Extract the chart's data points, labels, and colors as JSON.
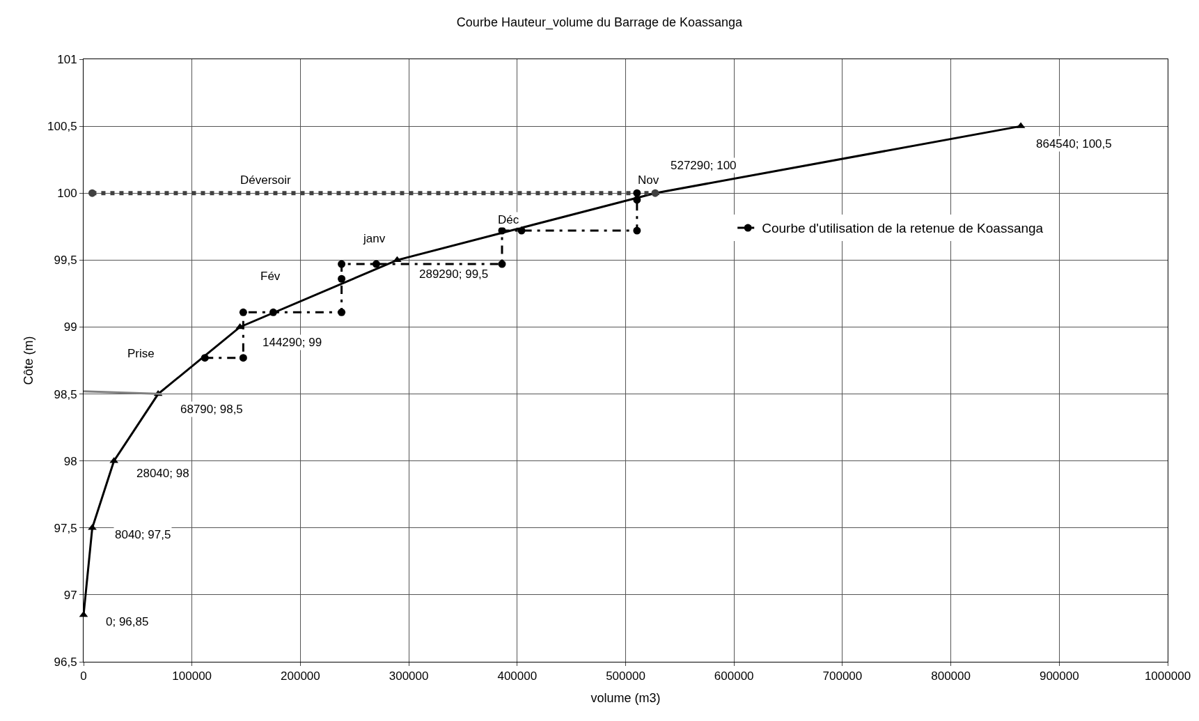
{
  "chart_data": {
    "type": "line",
    "title": "Courbe Hauteur_volume du Barrage de Koassanga",
    "xlabel": "volume (m3)",
    "ylabel": "Côte (m)",
    "xlim": [
      0,
      1000000
    ],
    "xticks": [
      0,
      100000,
      200000,
      300000,
      400000,
      500000,
      600000,
      700000,
      800000,
      900000,
      1000000
    ],
    "ylim": [
      96.5,
      101
    ],
    "yticks": [
      {
        "value": 96.5,
        "label": "96,5"
      },
      97,
      {
        "value": 97.5,
        "label": "97,5"
      },
      98,
      {
        "value": 98.5,
        "label": "98,5"
      },
      99,
      {
        "value": 99.5,
        "label": "99,5"
      },
      100,
      {
        "value": 100.5,
        "label": "100,5"
      },
      101
    ],
    "grid": true,
    "legend": "right",
    "series": [
      {
        "color": "#000000",
        "marker": "triangle",
        "line_style": "solid",
        "x": [
          0,
          8040,
          28040,
          68790,
          144290,
          289290,
          527290,
          864540
        ],
        "values": [
          96.85,
          97.5,
          98,
          98.5,
          99,
          99.5,
          100,
          100.5
        ],
        "value_labels": [
          "0; 96,85",
          "8040; 97,5",
          "28040; 98",
          "68790; 98,5",
          "144290; 99",
          "289290; 99,5",
          "527290; 100",
          "864540; 100,5"
        ]
      },
      {
        "color": "#404040",
        "marker": "circle",
        "line_style": "dotted",
        "x": [
          8000,
          527290
        ],
        "values": [
          100,
          100
        ]
      },
      {
        "color": "#808080",
        "marker": "none",
        "line_style": "solid",
        "x": [
          0,
          72000
        ],
        "values": [
          98.52,
          98.5
        ]
      },
      {
        "name": "Courbe d'utilisation de la retenue de Koassanga",
        "color": "#000000",
        "marker": "circle",
        "line_style": "dashed",
        "x": [
          111900,
          147300,
          147300,
          175000,
          238000,
          238000,
          238000,
          270000,
          386000,
          386000,
          404000,
          510500,
          510500,
          510500
        ],
        "values": [
          98.77,
          98.77,
          99.11,
          99.11,
          99.11,
          99.36,
          99.47,
          99.47,
          99.47,
          99.72,
          99.72,
          99.72,
          99.95,
          100
        ]
      }
    ],
    "annotations": [
      "Déversoir",
      "Prise",
      "Fév",
      "janv",
      "Déc",
      "Nov"
    ]
  }
}
